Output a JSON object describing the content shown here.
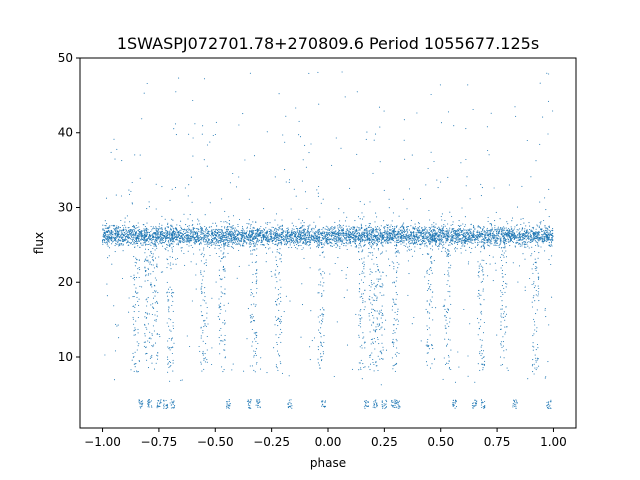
{
  "chart_data": {
    "type": "scatter",
    "title": "1SWASPJ072701.78+270809.6 Period 1055677.125s",
    "xlabel": "phase",
    "ylabel": "flux",
    "xlim": [
      -1.1,
      1.1
    ],
    "ylim": [
      0.5,
      50
    ],
    "xticks": [
      -1.0,
      -0.75,
      -0.5,
      -0.25,
      0.0,
      0.25,
      0.5,
      0.75,
      1.0
    ],
    "xtick_labels": [
      "−1.00",
      "−0.75",
      "−0.50",
      "−0.25",
      "0.00",
      "0.25",
      "0.50",
      "0.75",
      "1.00"
    ],
    "yticks": [
      10,
      20,
      30,
      40,
      50
    ],
    "ytick_labels": [
      "10",
      "20",
      "30",
      "40",
      "50"
    ],
    "grid": false,
    "color": "#1f77b4",
    "series": [
      {
        "x_range": [
          -1.0,
          1.0
        ],
        "flux_band_center": 26.2,
        "flux_band_halfwidth": 1.6,
        "low_cluster_flux": 3.7,
        "low_cluster_phases": [
          -0.83,
          -0.79,
          -0.75,
          -0.72,
          -0.69,
          -0.44,
          -0.35,
          -0.31,
          -0.17,
          -0.02,
          0.17,
          0.21,
          0.25,
          0.29,
          0.31,
          0.56,
          0.65,
          0.69,
          0.83,
          0.98
        ],
        "dips_phases": [
          -0.85,
          -0.8,
          -0.77,
          -0.7,
          -0.55,
          -0.47,
          -0.33,
          -0.22,
          -0.03,
          0.15,
          0.2,
          0.23,
          0.3,
          0.45,
          0.53,
          0.68,
          0.78,
          0.92
        ]
      }
    ]
  }
}
